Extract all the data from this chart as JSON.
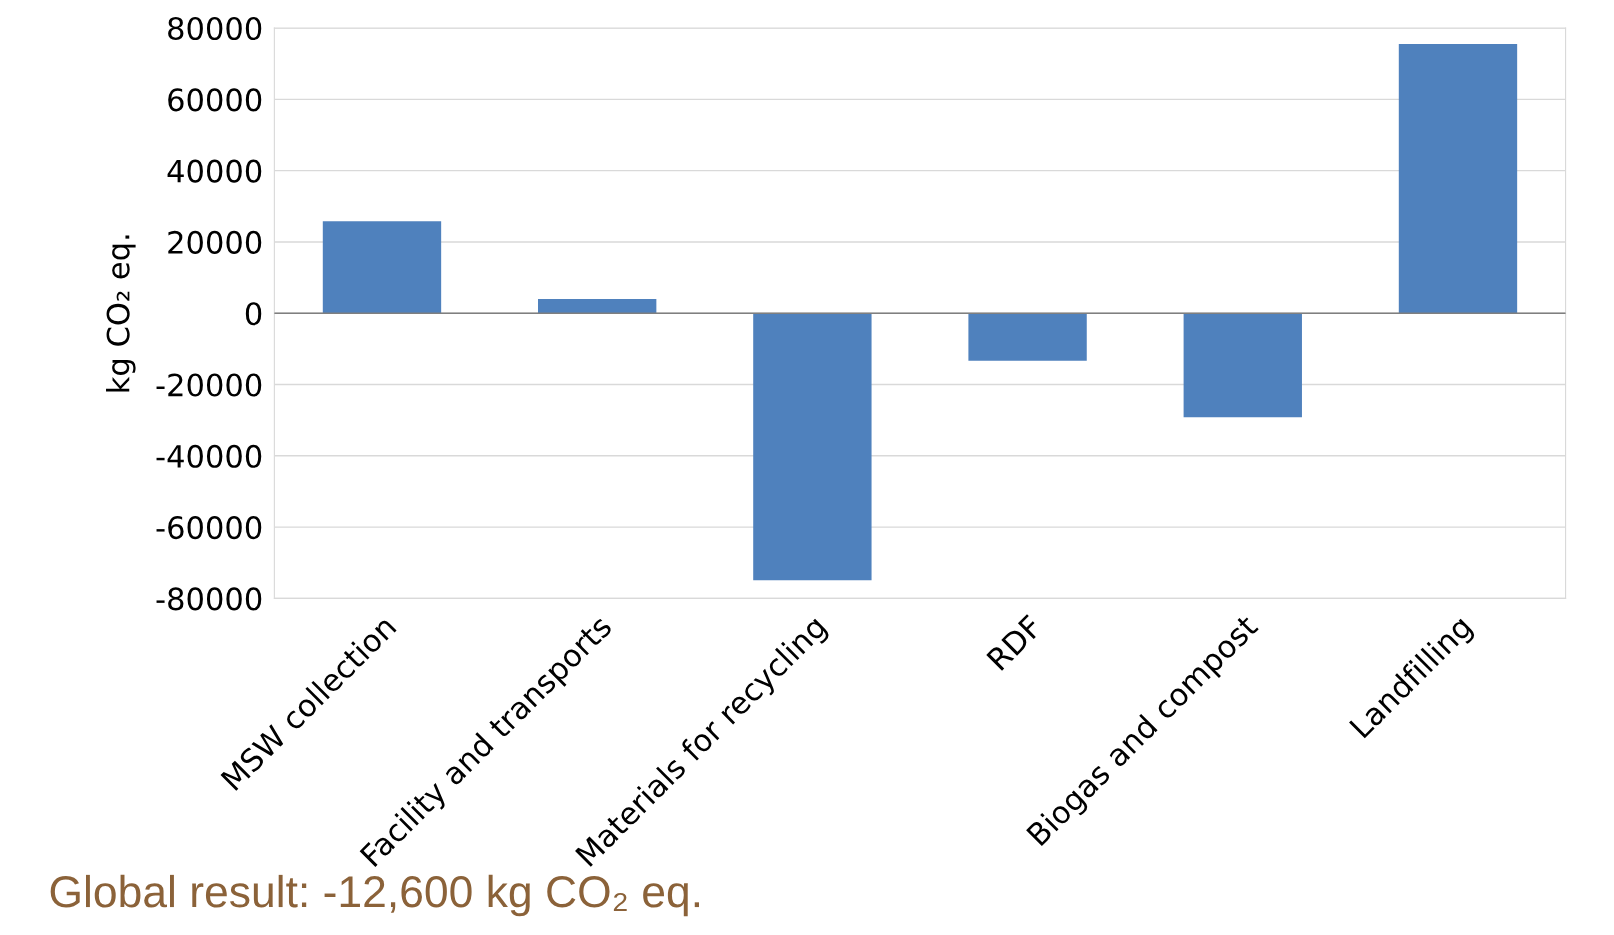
{
  "chart_data": {
    "type": "bar",
    "ylabel": "kg CO₂ eq.",
    "categories": [
      "MSW collection",
      "Facility and transports",
      "Materials for recycling",
      "RDF",
      "Biogas and compost",
      "Landfilling"
    ],
    "values": [
      25800,
      4000,
      -74900,
      -13300,
      -29200,
      75500
    ],
    "color": "#4f81bd",
    "ylim": [
      -80000,
      80000
    ],
    "yticks": [
      -80000,
      -60000,
      -40000,
      -20000,
      0,
      20000,
      40000,
      60000,
      80000
    ],
    "grid": "y",
    "annotations": [
      "Global result: -12,600 kg CO₂ eq."
    ]
  }
}
